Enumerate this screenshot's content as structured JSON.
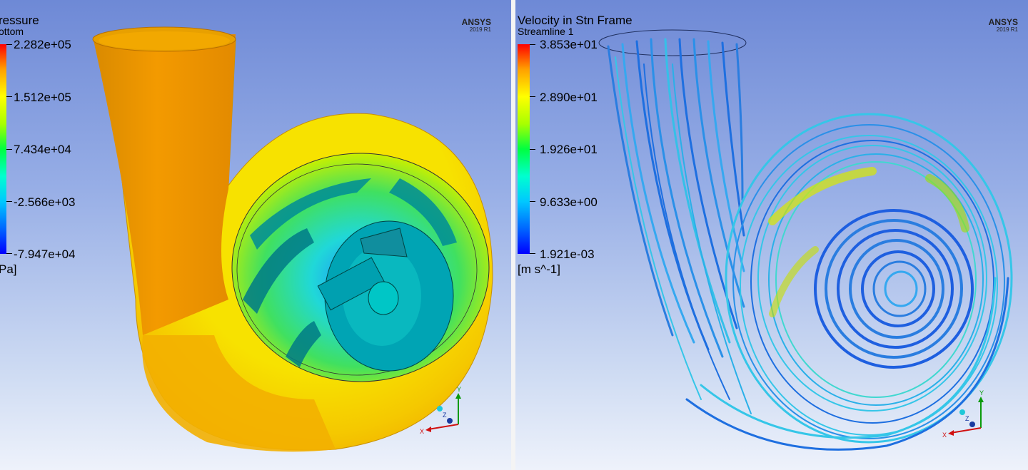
{
  "left": {
    "title": "ressure",
    "subtitle": "ottom",
    "legend_labels": [
      "2.282e+05",
      "1.512e+05",
      "7.434e+04",
      "-2.566e+03",
      "-7.947e+04"
    ],
    "unit": "Pa]",
    "brand": "ANSYS",
    "version": "2019 R1"
  },
  "right": {
    "title": "Velocity in Stn Frame",
    "subtitle": "Streamline 1",
    "legend_labels": [
      "3.853e+01",
      "2.890e+01",
      "1.926e+01",
      "9.633e+00",
      "1.921e-03"
    ],
    "unit": "[m s^-1]",
    "brand": "ANSYS",
    "version": "2019 R1"
  },
  "axes": {
    "x": "X",
    "y": "Y",
    "z": "Z"
  },
  "colors": {
    "volute_surface": "#f5c000",
    "impeller_shroud": "#00a4b4",
    "streamline_blue": "#1e6fe0",
    "streamline_cyan": "#35c6e8",
    "background_top": "#6e89d6",
    "background_bottom": "#eef2fb"
  }
}
